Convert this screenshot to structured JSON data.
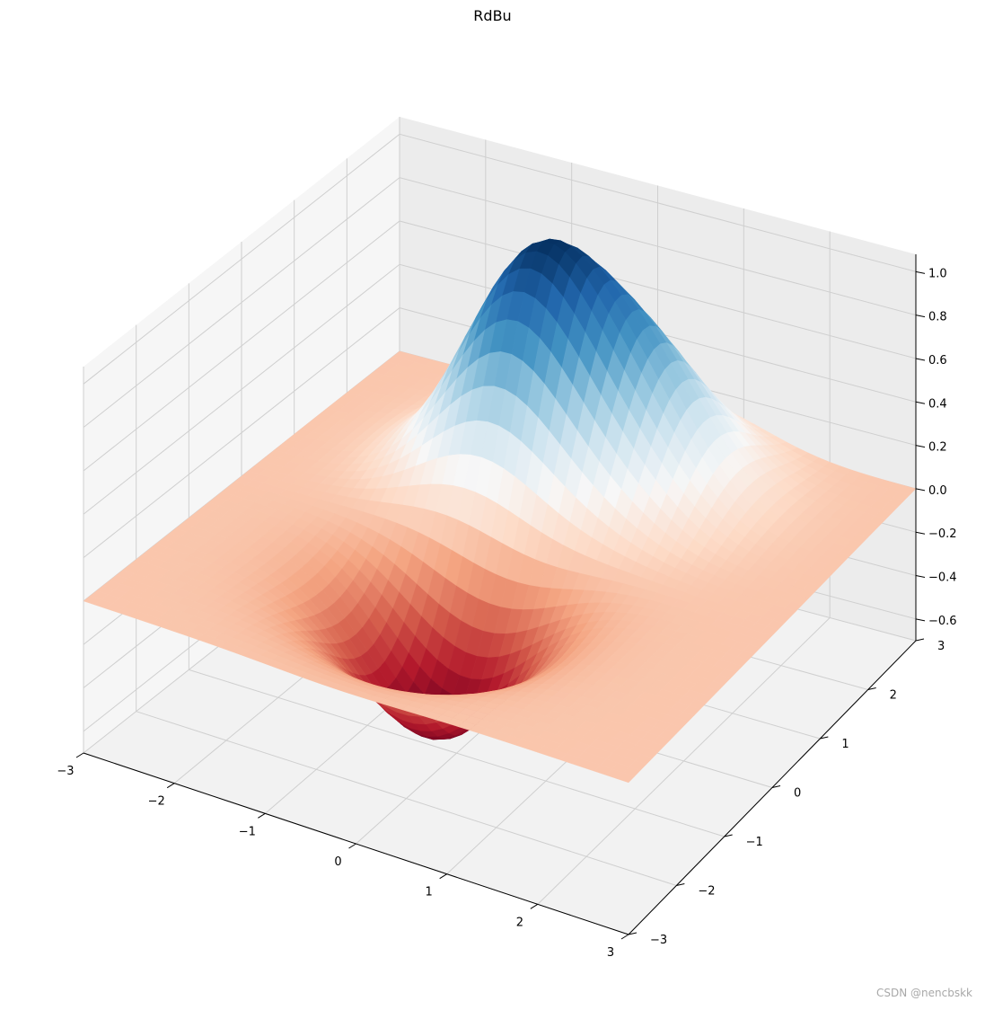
{
  "chart_data": {
    "type": "surface3d",
    "title": "RdBu",
    "colormap": "RdBu",
    "function": "sum of gaussian bumps",
    "x_range": [
      -3,
      3
    ],
    "y_range": [
      -3,
      3
    ],
    "z_range": [
      -0.7,
      1.08
    ],
    "x_ticks": [
      -3,
      -2,
      -1,
      0,
      1,
      2,
      3
    ],
    "x_tick_labels": [
      "−3",
      "−2",
      "−1",
      "0",
      "1",
      "2",
      "3"
    ],
    "y_ticks": [
      -3,
      -2,
      -1,
      0,
      1,
      2,
      3
    ],
    "y_tick_labels": [
      "−3",
      "−2",
      "−1",
      "0",
      "1",
      "2",
      "3"
    ],
    "z_ticks": [
      -0.6,
      -0.4,
      -0.2,
      0.0,
      0.2,
      0.4,
      0.6,
      0.8,
      1.0
    ],
    "z_tick_labels": [
      "−0.6",
      "−0.4",
      "−0.2",
      "0.0",
      "0.2",
      "0.4",
      "0.6",
      "0.8",
      "1.0"
    ],
    "features": [
      {
        "type": "peak",
        "x": -0.5,
        "y": 1.3,
        "z": 0.97
      },
      {
        "type": "peak",
        "x": 0.6,
        "y": 1.8,
        "z": 0.55
      },
      {
        "type": "trough",
        "x": -0.2,
        "y": -1.0,
        "z": -0.64
      }
    ],
    "grid": true,
    "xlabel": "",
    "ylabel": "",
    "zlabel": ""
  },
  "watermark": "CSDN @nencbskk"
}
